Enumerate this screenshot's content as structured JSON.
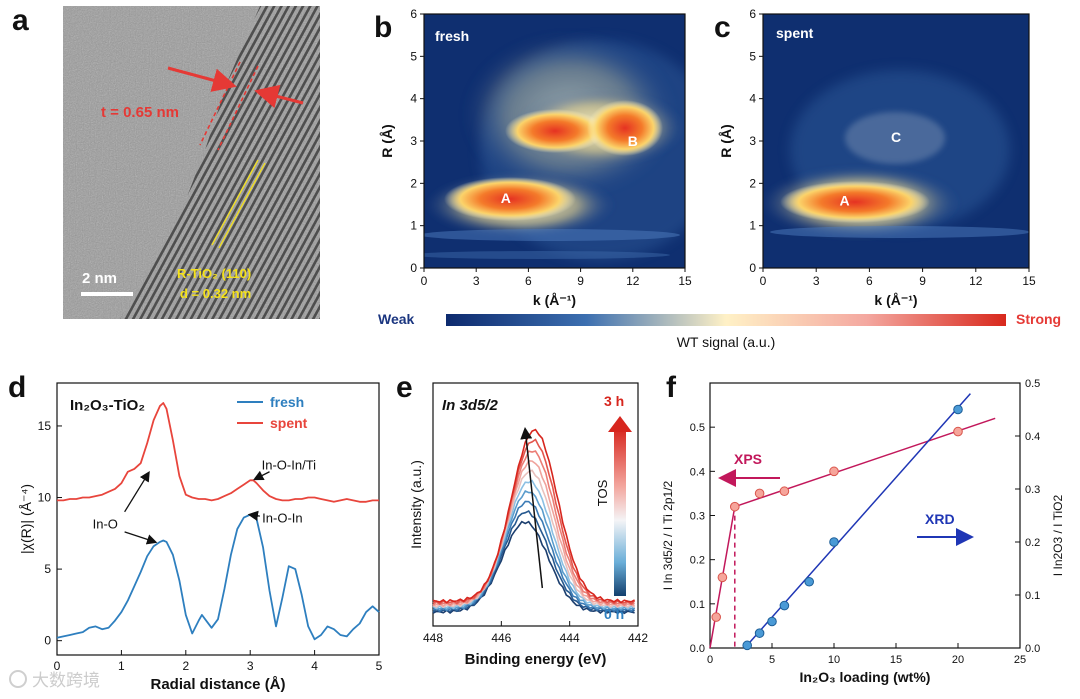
{
  "panel_letters": [
    "a",
    "b",
    "c",
    "d",
    "e",
    "f"
  ],
  "panel_a": {
    "thickness_label": "t = 0.65 nm",
    "scale_label": "2 nm",
    "phase_label": "R-TiO₂ (110)",
    "d_label": "d = 0.32 nm"
  },
  "colorbar": {
    "weak": "Weak",
    "strong": "Strong",
    "label": "WT signal (a.u.)"
  },
  "watermark": "大数跨境",
  "colors": {
    "fresh": "#2e7fbf",
    "spent": "#e8453c",
    "xps": "#c2185b",
    "xrd": "#1f36b5",
    "panel_text": "#e53935"
  },
  "chart_data": [
    {
      "id": "b",
      "type": "heatmap",
      "tag": "fresh",
      "xlabel": "k (Å⁻¹)",
      "ylabel": "R (Å)",
      "xlim": [
        0,
        15
      ],
      "ylim": [
        0,
        6
      ],
      "xticks": [
        0,
        3,
        6,
        9,
        12,
        15
      ],
      "yticks": [
        0,
        1,
        2,
        3,
        4,
        5,
        6
      ],
      "peaks": [
        {
          "label": "A",
          "k": 4.7,
          "R": 1.65
        },
        {
          "label": "B",
          "k": 12.0,
          "R": 3.0
        }
      ]
    },
    {
      "id": "c",
      "type": "heatmap",
      "tag": "spent",
      "xlabel": "k (Å⁻¹)",
      "ylabel": "R (Å)",
      "xlim": [
        0,
        15
      ],
      "ylim": [
        0,
        6
      ],
      "xticks": [
        0,
        3,
        6,
        9,
        12,
        15
      ],
      "yticks": [
        0,
        1,
        2,
        3,
        4,
        5,
        6
      ],
      "peaks": [
        {
          "label": "A",
          "k": 4.6,
          "R": 1.6
        },
        {
          "label": "C",
          "k": 7.5,
          "R": 3.1
        }
      ]
    },
    {
      "id": "d",
      "type": "line",
      "title": "In₂O₃-TiO₂",
      "xlabel": "Radial distance (Å)",
      "ylabel": "|χ(R)| (Å⁻⁴)",
      "xlim": [
        0,
        5
      ],
      "ylim": [
        -1,
        18
      ],
      "xticks": [
        0,
        1,
        2,
        3,
        4,
        5
      ],
      "yticks": [
        0,
        5,
        10,
        15
      ],
      "series": [
        {
          "name": "fresh",
          "x": [
            0,
            0.1,
            0.2,
            0.3,
            0.4,
            0.5,
            0.6,
            0.7,
            0.8,
            0.9,
            1.0,
            1.1,
            1.2,
            1.3,
            1.4,
            1.5,
            1.6,
            1.65,
            1.7,
            1.8,
            1.9,
            2.0,
            2.1,
            2.2,
            2.25,
            2.3,
            2.4,
            2.5,
            2.6,
            2.7,
            2.8,
            2.9,
            3.0,
            3.05,
            3.1,
            3.2,
            3.3,
            3.4,
            3.5,
            3.6,
            3.7,
            3.8,
            3.9,
            4.0,
            4.1,
            4.2,
            4.3,
            4.4,
            4.5,
            4.6,
            4.7,
            4.8,
            4.9,
            5.0
          ],
          "y": [
            0.2,
            0.3,
            0.4,
            0.5,
            0.6,
            0.9,
            1.0,
            0.8,
            0.9,
            1.4,
            2.0,
            2.8,
            3.8,
            4.8,
            5.9,
            6.6,
            6.9,
            7.0,
            6.9,
            6.0,
            4.2,
            1.8,
            0.5,
            1.4,
            1.8,
            1.5,
            0.9,
            1.5,
            3.6,
            6.0,
            7.8,
            8.6,
            8.8,
            8.8,
            8.5,
            6.5,
            3.5,
            1.0,
            3.0,
            5.2,
            5.0,
            3.2,
            1.0,
            0.1,
            0.4,
            1.0,
            0.8,
            0.4,
            0.3,
            0.8,
            1.2,
            2.0,
            2.4,
            2.0
          ]
        },
        {
          "name": "spent",
          "x": [
            0,
            0.1,
            0.2,
            0.3,
            0.4,
            0.5,
            0.6,
            0.7,
            0.8,
            0.9,
            1.0,
            1.1,
            1.2,
            1.3,
            1.4,
            1.5,
            1.6,
            1.65,
            1.7,
            1.8,
            1.9,
            2.0,
            2.1,
            2.2,
            2.3,
            2.4,
            2.5,
            2.6,
            2.7,
            2.8,
            2.9,
            3.0,
            3.05,
            3.1,
            3.2,
            3.3,
            3.4,
            3.5,
            3.6,
            3.7,
            3.8,
            3.9,
            4.0,
            4.1,
            4.2,
            4.3,
            4.4,
            4.5,
            4.6,
            4.7,
            4.8,
            4.9,
            5.0
          ],
          "y": [
            9.8,
            9.8,
            9.9,
            9.9,
            10.0,
            10.0,
            10.1,
            10.2,
            10.4,
            10.6,
            11.0,
            11.8,
            12.0,
            12.4,
            13.8,
            15.4,
            16.4,
            16.6,
            16.2,
            14.0,
            11.5,
            10.2,
            10.0,
            9.9,
            9.9,
            9.8,
            9.9,
            10.1,
            10.3,
            10.6,
            10.9,
            11.2,
            11.2,
            11.0,
            10.5,
            10.1,
            9.9,
            9.8,
            9.8,
            9.9,
            9.9,
            10.0,
            10.0,
            9.9,
            9.8,
            9.7,
            9.8,
            9.9,
            9.8,
            9.7,
            9.7,
            9.8,
            9.8
          ]
        }
      ],
      "annotations": [
        {
          "text": "In-O-In/Ti",
          "x": 3.6,
          "y": 12.3
        },
        {
          "text": "In-O",
          "x": 0.75,
          "y": 8.2
        },
        {
          "text": "In-O-In",
          "x": 3.5,
          "y": 8.6
        }
      ]
    },
    {
      "id": "e",
      "type": "line",
      "title": "In 3d5/2",
      "xlabel": "Binding energy (eV)",
      "ylabel": "Intensity (a.u.)",
      "xlim": [
        448,
        442
      ],
      "xticks": [
        448,
        446,
        444,
        442
      ],
      "colorbar_top": "3 h",
      "colorbar_bottom": "0 h",
      "colorbar_label": "TOS",
      "series_count": 10
    },
    {
      "id": "f",
      "type": "scatter",
      "xlabel": "In₂O₃ loading (wt%)",
      "ylabel_left": "I In 3d5/2 / I Ti 2p1/2",
      "ylabel_right": "I In2O3 / I TiO2",
      "xlim": [
        0,
        25
      ],
      "ylim_left": [
        0,
        0.6
      ],
      "ylim_right": [
        0,
        0.5
      ],
      "xticks": [
        0,
        5,
        10,
        15,
        20,
        25
      ],
      "yticks_left": [
        0.0,
        0.1,
        0.2,
        0.3,
        0.4,
        0.5
      ],
      "yticks_right": [
        0.0,
        0.1,
        0.2,
        0.3,
        0.4,
        0.5
      ],
      "xps_label": "XPS",
      "xrd_label": "XRD",
      "series": [
        {
          "name": "XPS",
          "axis": "left",
          "x": [
            0.5,
            1,
            2,
            4,
            6,
            10,
            20
          ],
          "y": [
            0.07,
            0.16,
            0.32,
            0.35,
            0.355,
            0.4,
            0.49
          ]
        },
        {
          "name": "XRD",
          "axis": "right",
          "x": [
            3,
            4,
            5,
            6,
            8,
            10,
            20
          ],
          "y": [
            0.005,
            0.028,
            0.05,
            0.08,
            0.125,
            0.2,
            0.45
          ]
        }
      ]
    }
  ]
}
